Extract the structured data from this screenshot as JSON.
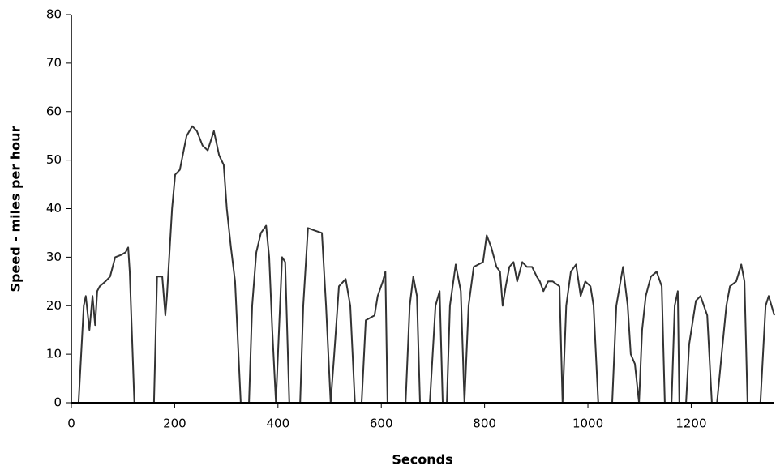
{
  "chart_data": {
    "type": "line",
    "x_label": "Seconds",
    "y_label": "Speed - miles per hour",
    "x": [
      0,
      14,
      24,
      28,
      35,
      41,
      46,
      50,
      55,
      66,
      75,
      85,
      97,
      105,
      110,
      113,
      122,
      160,
      166,
      176,
      182,
      185,
      195,
      201,
      210,
      223,
      234,
      243,
      254,
      264,
      276,
      286,
      295,
      301,
      309,
      317,
      328,
      344,
      350,
      358,
      367,
      377,
      383,
      389,
      396,
      402,
      408,
      414,
      422,
      443,
      449,
      458,
      471,
      485,
      493,
      502,
      509,
      518,
      531,
      540,
      549,
      562,
      570,
      587,
      593,
      603,
      608,
      612,
      647,
      655,
      662,
      669,
      675,
      694,
      705,
      713,
      719,
      727,
      733,
      744,
      754,
      761,
      769,
      779,
      788,
      797,
      804,
      813,
      823,
      830,
      835,
      841,
      848,
      856,
      863,
      873,
      882,
      892,
      901,
      907,
      914,
      923,
      932,
      945,
      951,
      958,
      967,
      977,
      986,
      995,
      1005,
      1011,
      1020,
      1047,
      1055,
      1068,
      1077,
      1083,
      1091,
      1099,
      1105,
      1112,
      1122,
      1133,
      1143,
      1149,
      1162,
      1168,
      1174,
      1177,
      1190,
      1196,
      1209,
      1218,
      1231,
      1240,
      1250,
      1259,
      1268,
      1275,
      1287,
      1297,
      1303,
      1309,
      1334,
      1344,
      1350,
      1361
    ],
    "values": [
      0,
      0,
      20,
      22,
      15,
      22,
      16,
      23,
      24,
      25,
      26,
      30,
      30.5,
      31,
      32,
      27,
      0,
      0,
      26,
      26,
      18,
      22,
      40,
      47,
      48,
      55,
      57,
      56,
      53,
      52,
      56,
      51,
      49,
      40,
      32,
      25,
      0,
      0,
      20,
      31,
      35,
      36.5,
      30,
      15,
      0,
      15,
      30,
      29,
      0,
      0,
      20,
      36,
      35.5,
      35,
      20,
      0,
      10,
      24,
      25.5,
      20,
      0,
      0,
      17,
      18,
      22,
      25,
      27,
      0,
      0,
      20,
      26,
      22,
      0,
      0,
      20,
      23,
      0,
      0,
      20,
      28.5,
      23,
      0,
      20,
      28,
      28.5,
      29,
      34.5,
      32,
      28,
      27,
      20,
      24,
      28,
      29,
      25,
      29,
      28,
      28,
      26,
      25,
      23,
      25,
      25,
      24,
      0,
      20,
      27,
      28.5,
      22,
      25,
      24,
      20,
      0,
      0,
      20,
      28,
      20,
      10,
      8,
      0,
      15,
      22,
      26,
      27,
      24,
      0,
      0,
      20,
      23,
      0,
      0,
      12,
      21,
      22,
      18,
      0,
      0,
      10,
      20,
      24,
      25,
      28.5,
      25,
      0,
      0,
      20,
      22,
      18
    ],
    "color": "#333333",
    "xlim": [
      0,
      1361
    ],
    "xticks": [
      0,
      200,
      400,
      600,
      800,
      1000,
      1200
    ],
    "ylim": [
      0,
      80
    ],
    "yticks": [
      0,
      10,
      20,
      30,
      40,
      50,
      60,
      70,
      80
    ]
  }
}
